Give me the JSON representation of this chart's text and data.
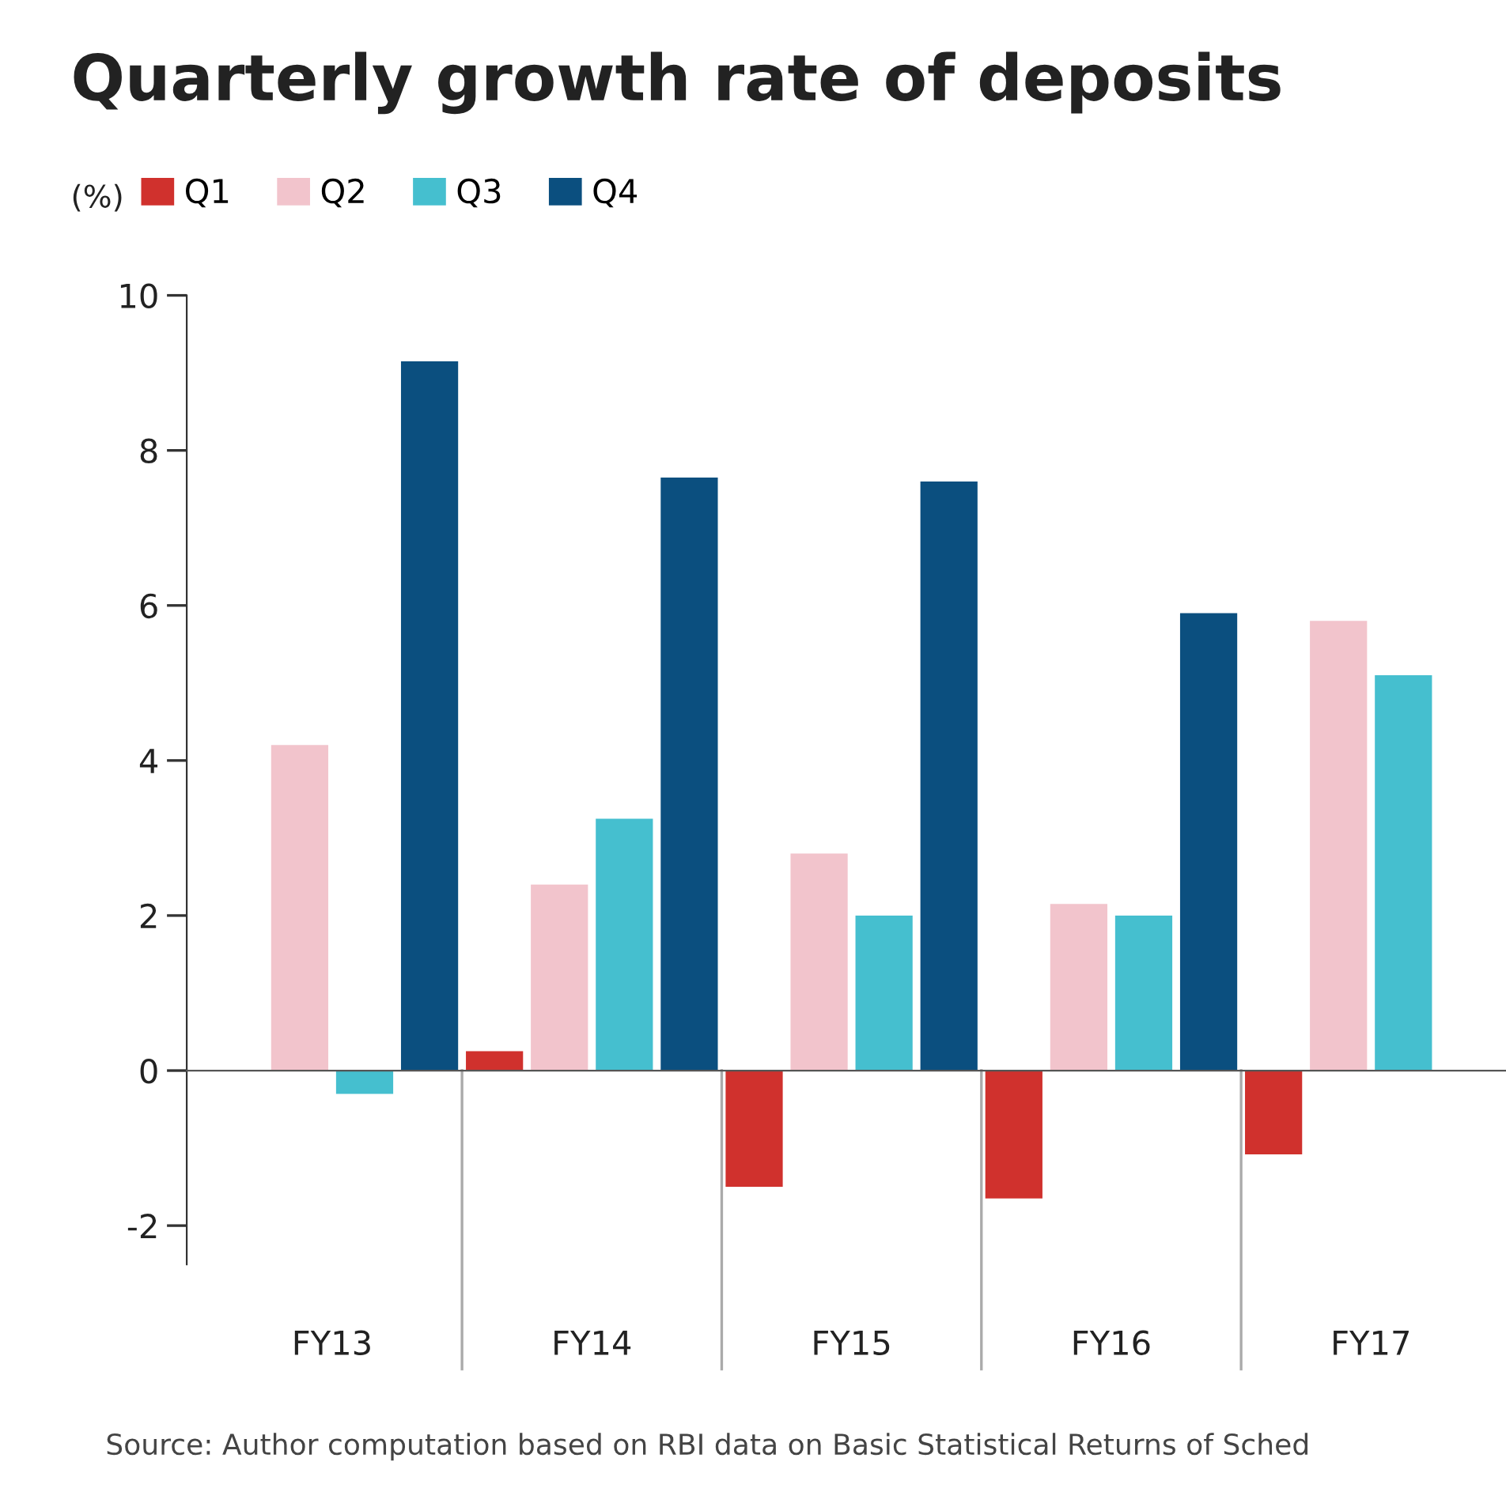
{
  "chart_data": {
    "type": "bar",
    "title": "Quarterly growth rate of deposits",
    "ylabel": "(%)",
    "categories": [
      "FY13",
      "FY14",
      "FY15",
      "FY16",
      "FY17"
    ],
    "series": [
      {
        "name": "Q1",
        "color": "#d0312d",
        "values": [
          null,
          0.25,
          -1.5,
          -1.65,
          -1.08
        ]
      },
      {
        "name": "Q2",
        "color": "#f2c4cc",
        "values": [
          4.2,
          2.4,
          2.8,
          2.15,
          5.8
        ]
      },
      {
        "name": "Q3",
        "color": "#45bfcf",
        "values": [
          -0.3,
          3.25,
          2.0,
          2.0,
          5.1
        ]
      },
      {
        "name": "Q4",
        "color": "#0b4f7f",
        "values": [
          9.15,
          7.65,
          7.6,
          5.9,
          null
        ]
      }
    ],
    "ylim": [
      -2.5,
      10
    ],
    "yticks": [
      -2,
      0,
      2,
      4,
      6,
      8,
      10
    ],
    "legend": "top left",
    "annotations": [
      "Source: Author computation based on RBI data on Basic Statistical Returns of Sched"
    ]
  }
}
